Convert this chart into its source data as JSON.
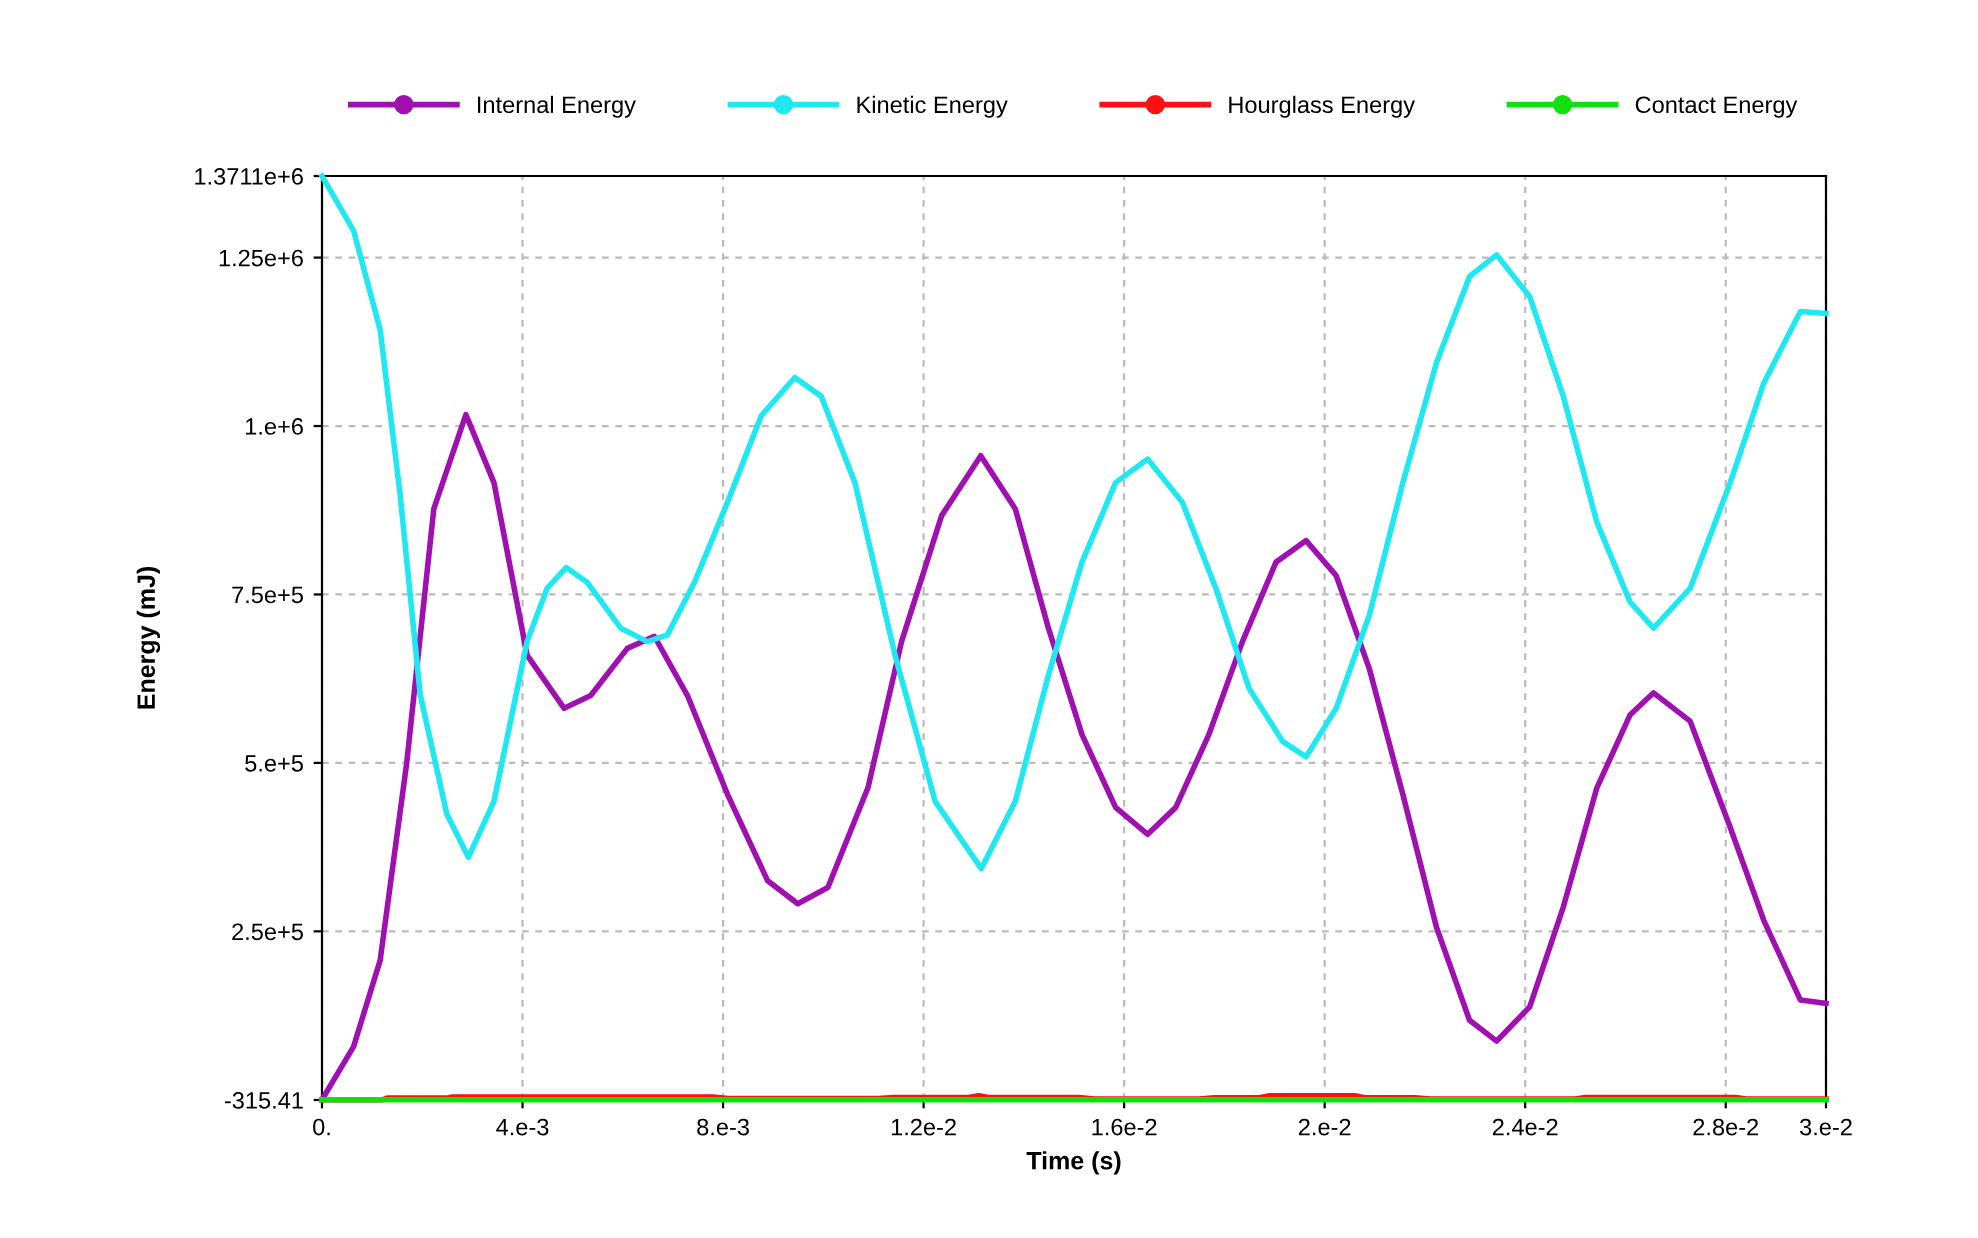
{
  "chart_data": {
    "type": "line",
    "xlabel": "Time (s)",
    "ylabel": "Energy (mJ)",
    "xlim": [
      0,
      0.03
    ],
    "ylim": [
      -315.41,
      1371100
    ],
    "xticks": [
      {
        "value": 0,
        "label": "0."
      },
      {
        "value": 0.004,
        "label": "4.e-3"
      },
      {
        "value": 0.008,
        "label": "8.e-3"
      },
      {
        "value": 0.012,
        "label": "1.2e-2"
      },
      {
        "value": 0.016,
        "label": "1.6e-2"
      },
      {
        "value": 0.02,
        "label": "2.e-2"
      },
      {
        "value": 0.024,
        "label": "2.4e-2"
      },
      {
        "value": 0.028,
        "label": "2.8e-2"
      },
      {
        "value": 0.03,
        "label": "3.e-2"
      }
    ],
    "yticks": [
      -315.41,
      {
        "value": 250000,
        "label": "2.5e+5"
      },
      {
        "value": 500000,
        "label": "5.e+5"
      },
      {
        "value": 750000,
        "label": "7.5e+5"
      },
      {
        "value": 1000000,
        "label": "1.e+6"
      },
      {
        "value": 1250000,
        "label": "1.25e+6"
      },
      {
        "value": 1371100,
        "label": "1.3711e+6"
      }
    ],
    "grid": true,
    "legend": "top",
    "line_style": "solid",
    "series": [
      {
        "name": "Internal Energy",
        "color": "#a010b0",
        "x": [
          0,
          0.00063,
          0.00116,
          0.00169,
          0.00223,
          0.00287,
          0.00343,
          0.00409,
          0.00483,
          0.00536,
          0.00609,
          0.00663,
          0.00729,
          0.00809,
          0.00889,
          0.00949,
          0.01009,
          0.01089,
          0.01156,
          0.01236,
          0.01314,
          0.01383,
          0.01449,
          0.01516,
          0.01583,
          0.01647,
          0.01703,
          0.01769,
          0.01836,
          0.01903,
          0.01963,
          0.02023,
          0.02089,
          0.02156,
          0.02223,
          0.02289,
          0.02343,
          0.02409,
          0.02476,
          0.02543,
          0.02609,
          0.02656,
          0.02729,
          0.02809,
          0.02876,
          0.02949,
          0.03
        ],
        "values": [
          0,
          79000,
          207000,
          500000,
          877000,
          1017000,
          916000,
          660000,
          581000,
          600000,
          670000,
          688000,
          600000,
          453000,
          325000,
          291000,
          315000,
          463000,
          680000,
          867000,
          956000,
          877000,
          700000,
          542000,
          434000,
          394000,
          434000,
          542000,
          680000,
          798000,
          830000,
          778000,
          640000,
          453000,
          256000,
          118000,
          87000,
          138000,
          286000,
          463000,
          571000,
          604000,
          562000,
          404000,
          266000,
          148000,
          143000
        ]
      },
      {
        "name": "Kinetic Energy",
        "color": "#20e8f0",
        "x": [
          0,
          0.00063,
          0.00116,
          0.00156,
          0.00196,
          0.00249,
          0.00292,
          0.00343,
          0.00409,
          0.00449,
          0.00487,
          0.00529,
          0.00596,
          0.00649,
          0.00689,
          0.00743,
          0.00809,
          0.00876,
          0.00943,
          0.00996,
          0.01063,
          0.01143,
          0.01223,
          0.01315,
          0.01383,
          0.01449,
          0.01516,
          0.01583,
          0.01647,
          0.01716,
          0.01783,
          0.01849,
          0.01916,
          0.01963,
          0.02023,
          0.02089,
          0.02156,
          0.02223,
          0.02289,
          0.02343,
          0.02409,
          0.02476,
          0.02543,
          0.02609,
          0.02656,
          0.02729,
          0.02809,
          0.02876,
          0.02949,
          0.03
        ],
        "values": [
          1371000,
          1290000,
          1143000,
          897000,
          601000,
          424000,
          360000,
          443000,
          680000,
          759000,
          790000,
          768000,
          700000,
          680000,
          690000,
          768000,
          887000,
          1015000,
          1072000,
          1044000,
          916000,
          660000,
          443000,
          343000,
          443000,
          630000,
          798000,
          916000,
          951000,
          887000,
          759000,
          611000,
          532000,
          509000,
          581000,
          719000,
          916000,
          1094000,
          1222000,
          1254000,
          1192000,
          1044000,
          857000,
          739000,
          700000,
          759000,
          916000,
          1064000,
          1170000,
          1167000
        ]
      },
      {
        "name": "Hourglass Energy",
        "color": "#ff1010",
        "x": [
          0,
          0.0012,
          0.0013,
          0.0025,
          0.0026,
          0.0078,
          0.0081,
          0.0111,
          0.0114,
          0.0129,
          0.0131,
          0.0133,
          0.0151,
          0.0154,
          0.0175,
          0.0178,
          0.0187,
          0.0189,
          0.0206,
          0.0208,
          0.0218,
          0.0221,
          0.025,
          0.0252,
          0.0282,
          0.0284,
          0.03
        ],
        "values": [
          0,
          0,
          2500,
          2500,
          4000,
          4000,
          2000,
          2000,
          3500,
          3500,
          6000,
          3500,
          3500,
          1000,
          1000,
          3000,
          3000,
          6000,
          6000,
          3000,
          3000,
          1000,
          1000,
          3500,
          3500,
          1000,
          1000
        ]
      },
      {
        "name": "Contact Energy",
        "color": "#10e010",
        "x": [
          0,
          0.03
        ],
        "values": [
          0,
          0
        ]
      }
    ]
  }
}
